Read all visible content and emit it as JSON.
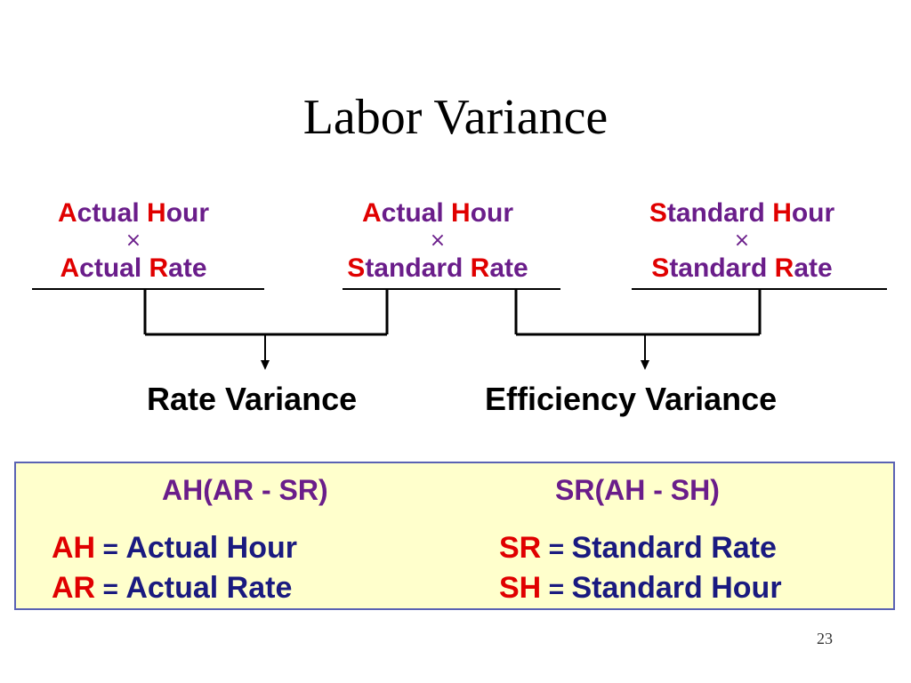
{
  "title": "Labor Variance",
  "columns": [
    {
      "line1": {
        "hl1": "A",
        "rest1": "ctual ",
        "hl2": "H",
        "rest2": "our"
      },
      "times": "×",
      "line2": {
        "hl1": "A",
        "rest1": "ctual ",
        "hl2": "R",
        "rest2": "ate"
      }
    },
    {
      "line1": {
        "hl1": "A",
        "rest1": "ctual ",
        "hl2": "H",
        "rest2": "our"
      },
      "times": "×",
      "line2": {
        "hl1": "S",
        "rest1": "tandard ",
        "hl2": "R",
        "rest2": "ate"
      }
    },
    {
      "line1": {
        "hl1": "S",
        "rest1": "tandard ",
        "hl2": "H",
        "rest2": "our"
      },
      "times": "×",
      "line2": {
        "hl1": "S",
        "rest1": "tandard ",
        "hl2": "R",
        "rest2": "ate"
      }
    }
  ],
  "variances": {
    "rate": "Rate Variance",
    "efficiency": "Efficiency Variance"
  },
  "box": {
    "formula_rate": "AH(AR - SR)",
    "formula_efficiency": "SR(AH - SH)",
    "definitions": [
      {
        "abbr": "AH",
        "eq": " = ",
        "text": "Actual Hour"
      },
      {
        "abbr": "AR",
        "eq": " = ",
        "text": "Actual Rate"
      },
      {
        "abbr": "SR",
        "eq": " = ",
        "text": "Standard Rate"
      },
      {
        "abbr": "SH",
        "eq": " = ",
        "text": "Standard Hour"
      }
    ]
  },
  "page_number": "23",
  "colors": {
    "highlight": "#e00000",
    "term": "#6a1d8a",
    "definition": "#1a1a80",
    "box_fill": "#ffffcc",
    "box_border": "#5a62b3"
  }
}
